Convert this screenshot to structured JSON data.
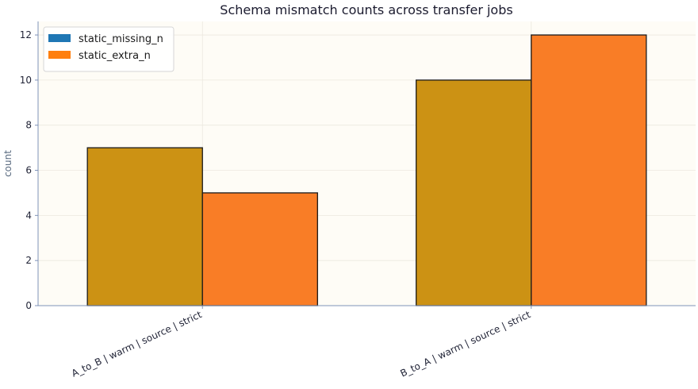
{
  "chart_data": {
    "type": "bar",
    "title": "Schema mismatch counts across transfer jobs",
    "xlabel": "",
    "ylabel": "count",
    "ylim": [
      0,
      12.6
    ],
    "yticks": [
      0,
      2,
      4,
      6,
      8,
      10,
      12
    ],
    "categories": [
      "A_to_B | warm | source | strict",
      "B_to_A | warm | source | strict"
    ],
    "series": [
      {
        "name": "static_missing_n",
        "values": [
          7,
          10
        ],
        "legend_color": "#1f77b4",
        "bar_color": "#cc9214"
      },
      {
        "name": "static_extra_n",
        "values": [
          5,
          12
        ],
        "legend_color": "#ff7f0e",
        "bar_color": "#f97d26"
      }
    ],
    "grid": true,
    "legend": "top-left",
    "colors": {
      "plot_bg": "#fefcf6",
      "axis": "#7f93b8",
      "grid": "#ece8df",
      "bar_edge": "#1b1b1b"
    }
  }
}
